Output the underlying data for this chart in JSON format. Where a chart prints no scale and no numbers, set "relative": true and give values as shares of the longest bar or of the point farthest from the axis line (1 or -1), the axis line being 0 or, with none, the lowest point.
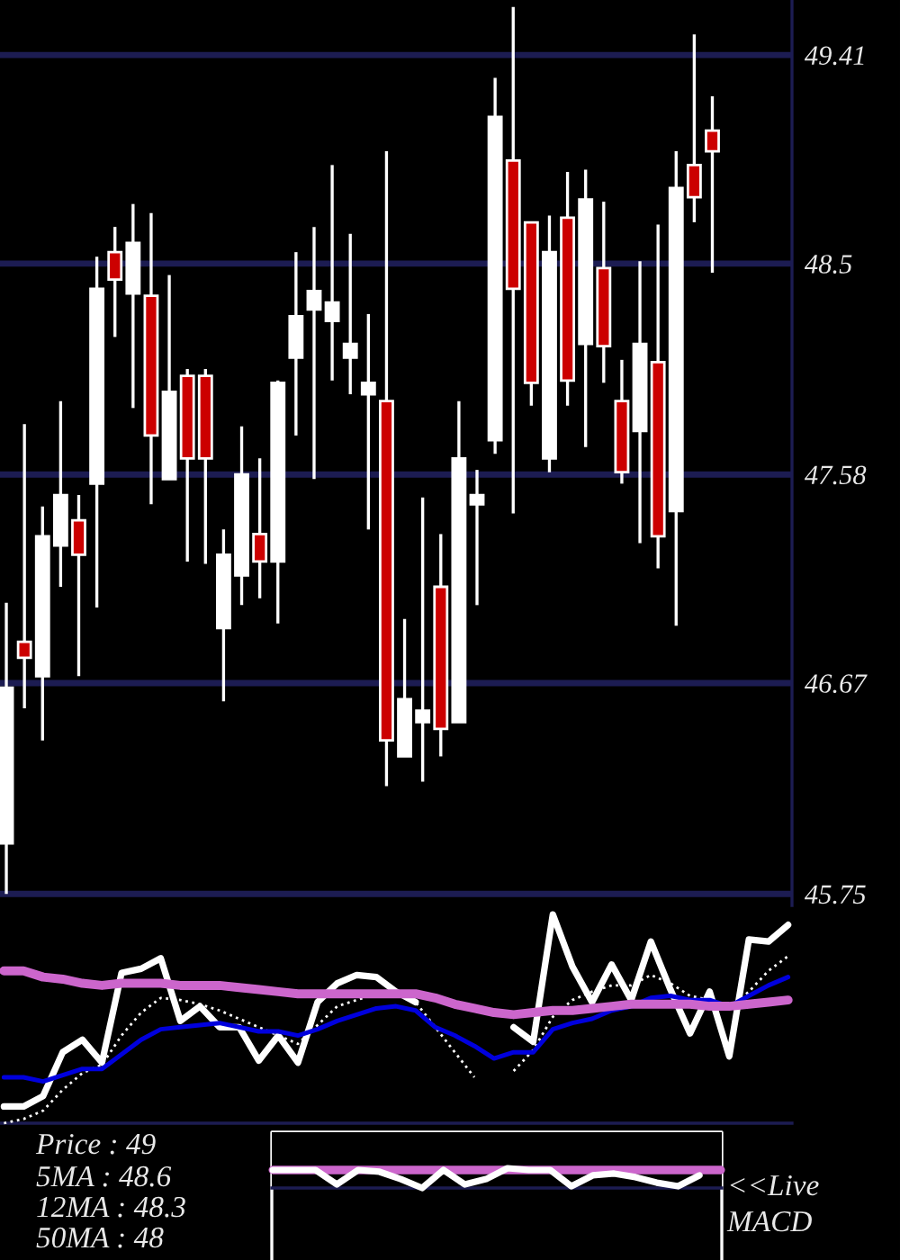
{
  "chart_data": [
    {
      "type": "candlestick",
      "categories": [
        null,
        null,
        null,
        null,
        null,
        null,
        null,
        null,
        null,
        null,
        null,
        null,
        null,
        null,
        null,
        null,
        null,
        null,
        null,
        null,
        null,
        null,
        null,
        null,
        null,
        null,
        null,
        null,
        null,
        null,
        null,
        null,
        null,
        null,
        null,
        null,
        null,
        null,
        null,
        null
      ],
      "ohlc": [
        [
          45.97,
          47.02,
          45.75,
          46.65
        ],
        [
          46.85,
          47.8,
          46.56,
          46.78
        ],
        [
          46.7,
          47.44,
          46.42,
          47.31
        ],
        [
          47.27,
          47.9,
          47.09,
          47.49
        ],
        [
          47.38,
          47.49,
          46.7,
          47.23
        ],
        [
          47.54,
          48.53,
          47.0,
          48.39
        ],
        [
          48.55,
          48.66,
          48.18,
          48.43
        ],
        [
          48.37,
          48.76,
          47.87,
          48.59
        ],
        [
          48.36,
          48.72,
          47.45,
          47.75
        ],
        [
          47.56,
          48.45,
          47.56,
          47.94
        ],
        [
          48.01,
          48.04,
          47.2,
          47.65
        ],
        [
          48.01,
          48.04,
          47.19,
          47.65
        ],
        [
          46.91,
          47.34,
          46.59,
          47.23
        ],
        [
          47.14,
          47.79,
          47.01,
          47.58
        ],
        [
          47.32,
          47.65,
          47.04,
          47.2
        ],
        [
          47.2,
          47.99,
          46.93,
          47.98
        ],
        [
          48.09,
          48.55,
          47.75,
          48.27
        ],
        [
          48.3,
          48.66,
          47.56,
          48.38
        ],
        [
          48.25,
          48.93,
          47.99,
          48.33
        ],
        [
          48.09,
          48.63,
          47.93,
          48.15
        ],
        [
          47.93,
          48.28,
          47.34,
          47.98
        ],
        [
          47.9,
          48.99,
          46.22,
          46.42
        ],
        [
          46.35,
          46.95,
          46.35,
          46.6
        ],
        [
          46.5,
          47.48,
          46.24,
          46.55
        ],
        [
          47.09,
          47.32,
          46.35,
          46.47
        ],
        [
          46.5,
          47.9,
          46.5,
          47.65
        ],
        [
          47.45,
          47.6,
          47.01,
          47.49
        ],
        [
          47.73,
          49.31,
          47.67,
          49.14
        ],
        [
          48.95,
          49.62,
          47.41,
          48.39
        ],
        [
          48.68,
          48.68,
          47.88,
          47.98
        ],
        [
          47.65,
          48.71,
          47.59,
          48.55
        ],
        [
          48.7,
          48.9,
          47.88,
          47.99
        ],
        [
          48.15,
          48.91,
          47.7,
          48.78
        ],
        [
          48.48,
          48.77,
          47.98,
          48.14
        ],
        [
          47.9,
          48.08,
          47.54,
          47.59
        ],
        [
          47.77,
          48.51,
          47.28,
          48.15
        ],
        [
          48.07,
          48.67,
          47.17,
          47.31
        ],
        [
          47.42,
          48.99,
          46.92,
          48.83
        ],
        [
          48.93,
          49.5,
          48.68,
          48.79
        ],
        [
          49.08,
          49.23,
          48.46,
          48.99
        ]
      ],
      "colors": [
        "#ffffff",
        "#cc0000",
        "#ffffff",
        "#ffffff",
        "#cc0000",
        "#ffffff",
        "#cc0000",
        "#ffffff",
        "#cc0000",
        "#ffffff",
        "#cc0000",
        "#cc0000",
        "#ffffff",
        "#ffffff",
        "#cc0000",
        "#ffffff",
        "#ffffff",
        "#ffffff",
        "#ffffff",
        "#ffffff",
        "#ffffff",
        "#cc0000",
        "#ffffff",
        "#ffffff",
        "#cc0000",
        "#ffffff",
        "#ffffff",
        "#ffffff",
        "#cc0000",
        "#cc0000",
        "#ffffff",
        "#cc0000",
        "#ffffff",
        "#cc0000",
        "#cc0000",
        "#ffffff",
        "#cc0000",
        "#ffffff",
        "#cc0000",
        "#cc0000"
      ],
      "ylim": [
        45.7,
        49.65
      ],
      "yticks": [
        45.75,
        46.67,
        47.58,
        48.5,
        49.41
      ],
      "grid": "y"
    },
    {
      "type": "line",
      "relative": true,
      "categories": [
        null,
        null,
        null,
        null,
        null,
        null,
        null,
        null,
        null,
        null,
        null,
        null,
        null,
        null,
        null,
        null,
        null,
        null,
        null,
        null,
        null,
        null,
        null,
        null,
        null,
        null,
        null,
        null,
        null,
        null,
        null,
        null,
        null,
        null,
        null,
        null,
        null,
        null,
        null,
        null,
        null
      ],
      "series": [
        {
          "color": "#ffffff",
          "values": [
            0.08,
            0.08,
            0.13,
            0.34,
            0.4,
            0.29,
            0.72,
            0.74,
            0.79,
            0.49,
            0.56,
            0.46,
            0.46,
            0.3,
            0.42,
            0.29,
            0.58,
            0.67,
            0.71,
            0.7,
            0.63,
            0.58,
            null,
            null,
            null,
            null,
            0.46,
            0.39,
            1.0,
            0.75,
            0.58,
            0.76,
            0.59,
            0.87,
            0.64,
            0.43,
            0.63,
            0.32,
            0.88,
            0.87,
            0.95
          ]
        },
        {
          "color": "#ffffff",
          "line_style": "dotted",
          "values": [
            0,
            0.02,
            0.06,
            0.16,
            0.24,
            0.28,
            0.42,
            0.53,
            0.6,
            0.59,
            0.57,
            0.54,
            0.5,
            0.46,
            0.42,
            0.38,
            0.47,
            0.56,
            0.59,
            0.62,
            0.62,
            0.58,
            0.46,
            0.34,
            0.22,
            null,
            0.25,
            0.35,
            0.51,
            0.59,
            0.63,
            0.66,
            0.66,
            0.71,
            0.67,
            0.61,
            0.59,
            0.55,
            0.63,
            0.73,
            0.8
          ]
        },
        {
          "color": "#0000dd",
          "values": [
            0.22,
            0.22,
            0.2,
            0.23,
            0.26,
            0.26,
            0.33,
            0.4,
            0.45,
            0.46,
            0.47,
            0.48,
            0.46,
            0.44,
            0.44,
            0.42,
            0.45,
            0.49,
            0.52,
            0.55,
            0.56,
            0.54,
            0.46,
            0.42,
            0.37,
            0.31,
            0.34,
            0.34,
            0.45,
            0.48,
            0.5,
            0.54,
            0.56,
            0.6,
            0.61,
            0.59,
            0.59,
            0.56,
            0.61,
            0.66,
            0.7
          ]
        },
        {
          "color": "#cc66cc",
          "values": [
            0.73,
            0.73,
            0.7,
            0.69,
            0.67,
            0.66,
            0.67,
            0.67,
            0.67,
            0.66,
            0.66,
            0.66,
            0.65,
            0.64,
            0.63,
            0.62,
            0.62,
            0.62,
            0.62,
            0.62,
            0.62,
            0.62,
            0.6,
            0.57,
            0.55,
            0.53,
            0.52,
            0.53,
            0.54,
            0.54,
            0.55,
            0.56,
            0.57,
            0.57,
            0.57,
            0.57,
            0.56,
            0.56,
            0.57,
            0.58,
            0.59
          ]
        }
      ],
      "annotations": [
        "Price : 49",
        "5MA : 48.6",
        "12MA : 48.3",
        "50MA : 48"
      ]
    },
    {
      "type": "line",
      "relative": true,
      "categories": [
        null,
        null,
        null,
        null,
        null,
        null,
        null,
        null,
        null,
        null,
        null,
        null,
        null,
        null,
        null,
        null,
        null,
        null,
        null,
        null,
        null,
        null
      ],
      "series": [
        {
          "color": "#cc66cc",
          "values": [
            0.91,
            0.91,
            0.91,
            0.91,
            0.91,
            0.91,
            0.91,
            0.91,
            0.91,
            0.91,
            0.91,
            0.91,
            0.91,
            0.91,
            0.91,
            0.91,
            0.91,
            0.91,
            0.91,
            0.91,
            0.91,
            0.91
          ]
        },
        {
          "color": "#ffffff",
          "values": [
            0.91,
            0.91,
            0.91,
            0.18,
            0.91,
            0.82,
            0.45,
            0,
            0.91,
            0.18,
            0.45,
            1.0,
            0.91,
            0.91,
            0.09,
            0.64,
            0.73,
            0.55,
            0.27,
            0.09,
            0.64,
            null
          ]
        }
      ],
      "annotations": [
        "<<Live",
        "MACD"
      ]
    }
  ]
}
